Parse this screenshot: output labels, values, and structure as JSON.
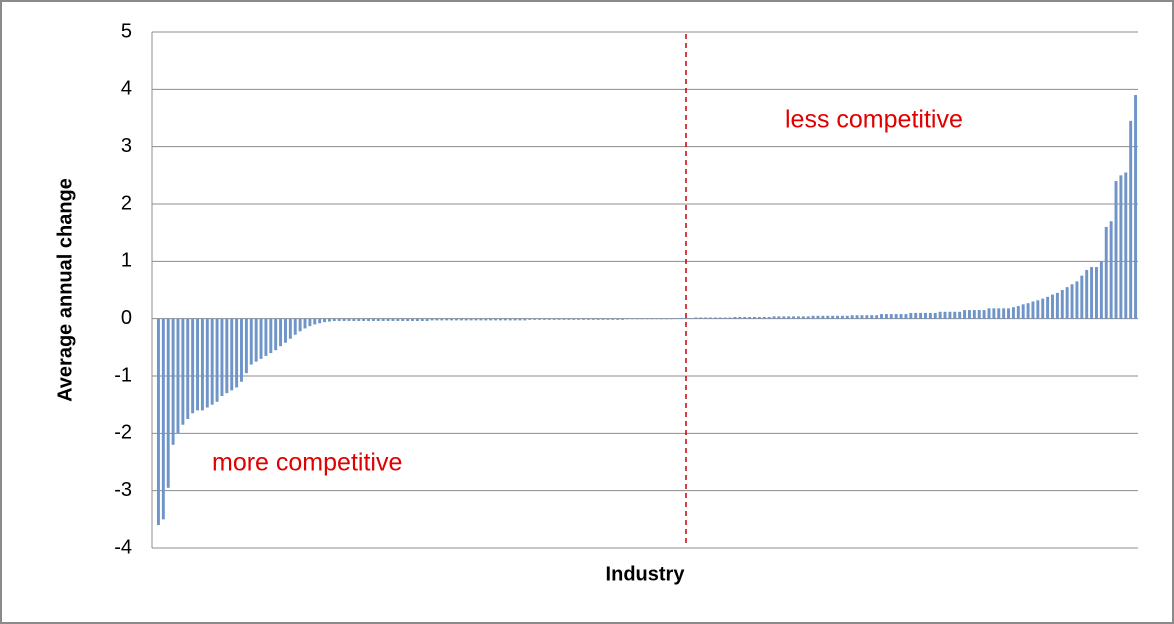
{
  "chart_data": {
    "type": "bar",
    "y_label": "Average annual change",
    "x_label": "Industry",
    "annotations": [
      "less competitive",
      "more competitive"
    ],
    "values": [
      -3.6,
      -3.5,
      -2.95,
      -2.2,
      -2,
      -1.85,
      -1.75,
      -1.65,
      -1.6,
      -1.6,
      -1.55,
      -1.5,
      -1.45,
      -1.35,
      -1.3,
      -1.25,
      -1.2,
      -1.1,
      -0.95,
      -0.8,
      -0.75,
      -0.7,
      -0.65,
      -0.6,
      -0.55,
      -0.48,
      -0.42,
      -0.35,
      -0.28,
      -0.22,
      -0.17,
      -0.13,
      -0.1,
      -0.08,
      -0.06,
      -0.05,
      -0.04,
      -0.04,
      -0.04,
      -0.04,
      -0.04,
      -0.04,
      -0.04,
      -0.04,
      -0.04,
      -0.04,
      -0.04,
      -0.04,
      -0.04,
      -0.04,
      -0.04,
      -0.04,
      -0.04,
      -0.04,
      -0.04,
      -0.04,
      -0.03,
      -0.03,
      -0.03,
      -0.03,
      -0.03,
      -0.03,
      -0.03,
      -0.03,
      -0.03,
      -0.03,
      -0.03,
      -0.03,
      -0.03,
      -0.03,
      -0.03,
      -0.03,
      -0.03,
      -0.03,
      -0.03,
      -0.03,
      -0.02,
      -0.02,
      -0.02,
      -0.02,
      -0.02,
      -0.02,
      -0.02,
      -0.02,
      -0.02,
      -0.02,
      -0.02,
      -0.02,
      -0.02,
      -0.02,
      -0.02,
      -0.02,
      -0.02,
      -0.02,
      -0.02,
      -0.02,
      -0.01,
      -0.01,
      -0.01,
      -0.01,
      -0.01,
      -0.01,
      -0.01,
      -0.01,
      -0.01,
      -0.01,
      0.01,
      0.01,
      0.01,
      0.01,
      0.02,
      0.02,
      0.02,
      0.02,
      0.02,
      0.02,
      0.02,
      0.02,
      0.03,
      0.03,
      0.03,
      0.03,
      0.03,
      0.03,
      0.03,
      0.03,
      0.04,
      0.04,
      0.04,
      0.04,
      0.04,
      0.04,
      0.04,
      0.04,
      0.05,
      0.05,
      0.05,
      0.05,
      0.05,
      0.05,
      0.05,
      0.05,
      0.06,
      0.06,
      0.06,
      0.06,
      0.06,
      0.06,
      0.08,
      0.08,
      0.08,
      0.08,
      0.08,
      0.08,
      0.1,
      0.1,
      0.1,
      0.1,
      0.1,
      0.1,
      0.12,
      0.12,
      0.12,
      0.12,
      0.12,
      0.15,
      0.15,
      0.15,
      0.15,
      0.15,
      0.18,
      0.18,
      0.18,
      0.18,
      0.18,
      0.2,
      0.22,
      0.25,
      0.27,
      0.3,
      0.32,
      0.35,
      0.38,
      0.42,
      0.45,
      0.5,
      0.55,
      0.6,
      0.65,
      0.75,
      0.85,
      0.9,
      0.9,
      1.0,
      1.6,
      1.7,
      2.4,
      2.5,
      2.55,
      3.45,
      3.9
    ],
    "color": "#6e94c8",
    "divider_color": "#c00000",
    "annotation_color": "#e00000",
    "ylim": [
      -4,
      5
    ],
    "yticks": [
      -4,
      -3,
      -2,
      -1,
      0,
      1,
      2,
      3,
      4,
      5
    ],
    "grid": true
  }
}
